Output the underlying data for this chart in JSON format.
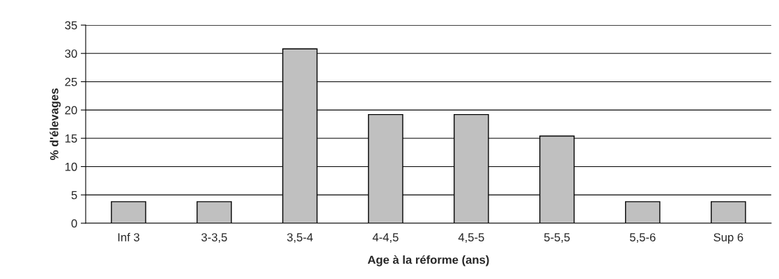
{
  "chart_data": {
    "type": "bar",
    "xlabel": "Age à la réforme (ans)",
    "ylabel": "% d'élevages",
    "categories": [
      "Inf 3",
      "3-3,5",
      "3,5-4",
      "4-4,5",
      "4,5-5",
      "5-5,5",
      "5,5-6",
      "Sup 6"
    ],
    "values": [
      3.8,
      3.8,
      30.8,
      19.2,
      19.2,
      15.4,
      3.8,
      3.8
    ],
    "color": "#c0c0c0",
    "ylim": [
      0,
      35
    ],
    "yticks": [
      0,
      5,
      10,
      15,
      20,
      25,
      30,
      35
    ],
    "grid": "y",
    "legend": false
  }
}
